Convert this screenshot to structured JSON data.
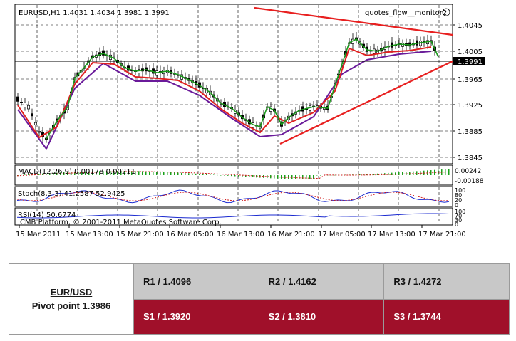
{
  "chart": {
    "header": "EURUSD,H1  1.4031 1.4034 1.3981 1.3991",
    "indicator_title": "quotes_flow__monitor2",
    "current_price": "1.3991",
    "price_axis": [
      "1.4045",
      "1.4005",
      "1.3965",
      "1.3925",
      "1.3885",
      "1.3845"
    ],
    "macd_label": "MACD(12,26,9) 0.00178 0.00211",
    "macd_axis": [
      "0.00242",
      "-0.00188"
    ],
    "stoch_label": "Stoch(8,3,3) 41.2587 52.9425",
    "stoch_axis": [
      "100",
      "80",
      "20",
      "0"
    ],
    "rsi_label": "RSI(14) 50.6774",
    "rsi_axis": [
      "100",
      "70",
      "30",
      "0"
    ],
    "copyright": "ICMB Platform, © 2001-2011 MetaQuotes Software Corp.",
    "time_axis": [
      "15 Mar 2011",
      "15 Mar 13:00",
      "15 Mar 21:00",
      "16 Mar 05:00",
      "16 Mar 13:00",
      "16 Mar 21:00",
      "17 Mar 05:00",
      "17 Mar 13:00",
      "17 Mar 21:00"
    ],
    "colors": {
      "ma_fast": "#1a9a1a",
      "ma_mid": "#e02020",
      "ma_slow": "#6a1a9a",
      "trendline": "#e82020",
      "macd_bar": "#1aa01a"
    }
  },
  "pivot": {
    "pair": "EUR/USD",
    "pivot_point": "Pivot point 1.3986",
    "resistance": [
      "R1 / 1.4096",
      "R2 / 1.4162",
      "R3 / 1.4272"
    ],
    "support": [
      "S1 / 1.3920",
      "S2 / 1.3810",
      "S3 / 1.3744"
    ]
  }
}
